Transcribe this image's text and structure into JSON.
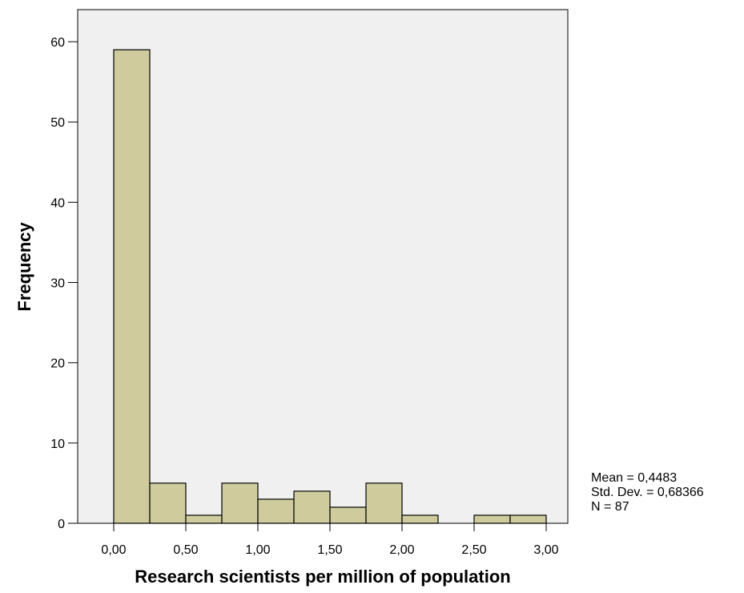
{
  "chart_data": {
    "type": "bar",
    "subtype": "histogram",
    "xlabel": "Research scientists per million of population",
    "ylabel": "Frequency",
    "xlim": [
      -0.25,
      3.15
    ],
    "ylim": [
      0,
      64
    ],
    "x_ticks": [
      {
        "value": 0.0,
        "label": "0,00"
      },
      {
        "value": 0.5,
        "label": "0,50"
      },
      {
        "value": 1.0,
        "label": "1,00"
      },
      {
        "value": 1.5,
        "label": "1,50"
      },
      {
        "value": 2.0,
        "label": "2,00"
      },
      {
        "value": 2.5,
        "label": "2,50"
      },
      {
        "value": 3.0,
        "label": "3,00"
      }
    ],
    "y_ticks": [
      {
        "value": 0,
        "label": "0"
      },
      {
        "value": 10,
        "label": "10"
      },
      {
        "value": 20,
        "label": "20"
      },
      {
        "value": 30,
        "label": "30"
      },
      {
        "value": 40,
        "label": "40"
      },
      {
        "value": 50,
        "label": "50"
      },
      {
        "value": 60,
        "label": "60"
      }
    ],
    "bins": [
      {
        "x0": 0.0,
        "x1": 0.25,
        "count": 59
      },
      {
        "x0": 0.25,
        "x1": 0.5,
        "count": 5
      },
      {
        "x0": 0.5,
        "x1": 0.75,
        "count": 1
      },
      {
        "x0": 0.75,
        "x1": 1.0,
        "count": 5
      },
      {
        "x0": 1.0,
        "x1": 1.25,
        "count": 3
      },
      {
        "x0": 1.25,
        "x1": 1.5,
        "count": 4
      },
      {
        "x0": 1.5,
        "x1": 1.75,
        "count": 2
      },
      {
        "x0": 1.75,
        "x1": 2.0,
        "count": 5
      },
      {
        "x0": 2.0,
        "x1": 2.25,
        "count": 1
      },
      {
        "x0": 2.25,
        "x1": 2.5,
        "count": 0
      },
      {
        "x0": 2.5,
        "x1": 2.75,
        "count": 1
      },
      {
        "x0": 2.75,
        "x1": 3.0,
        "count": 1
      }
    ],
    "stats": {
      "mean": "Mean = 0,4483",
      "std_dev": "Std. Dev. = 0,68366",
      "n": "N = 87"
    },
    "grid": false,
    "colors": {
      "bar_fill": "#cfcb9c",
      "bar_stroke": "#000000",
      "plot_bg": "#f0f0f0",
      "axis": "#000000"
    }
  }
}
